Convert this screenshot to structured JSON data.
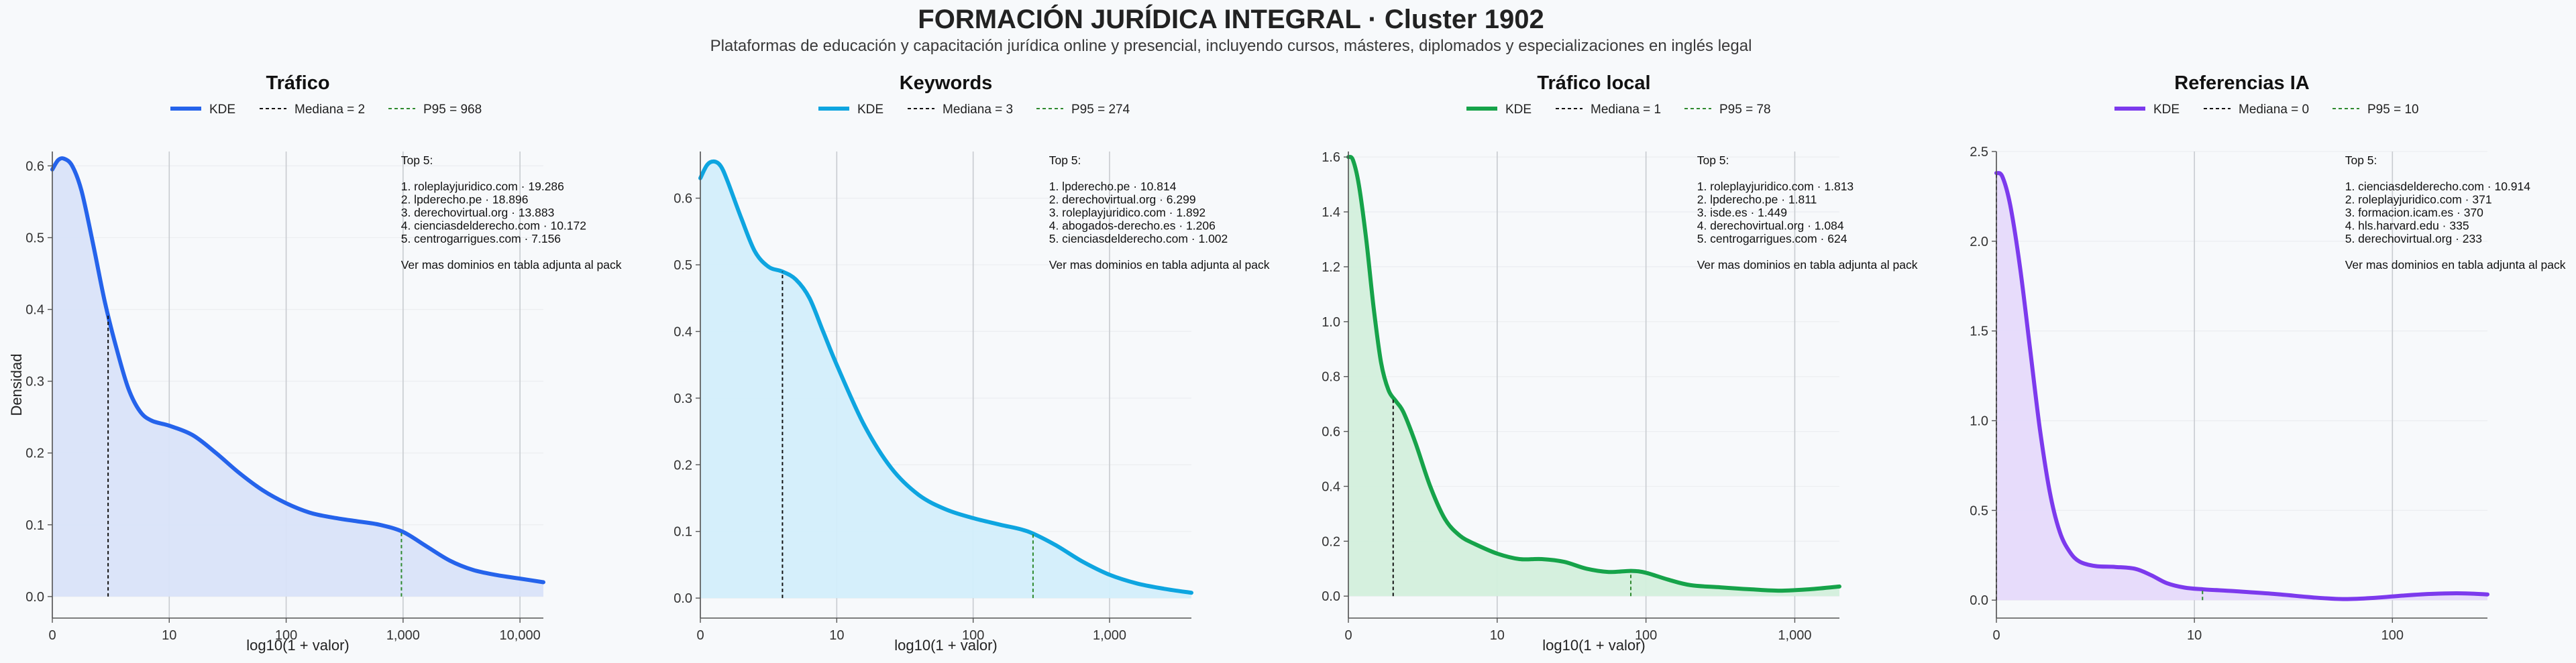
{
  "title": "FORMACIÓN JURÍDICA INTEGRAL · Cluster 1902",
  "subtitle": "Plataformas de educación y capacitación jurídica online y presencial, incluyendo cursos, másteres, diplomados y especializaciones en inglés legal",
  "chart_data": [
    {
      "type": "area",
      "title": "Tráfico",
      "color": "#2563eb",
      "fill": "#d9e3f9",
      "xlabel": "log10(1 + valor)",
      "ylabel": "Densidad",
      "xlim": [
        0,
        4.2
      ],
      "ylim": [
        -0.03,
        0.62
      ],
      "xticks": [
        {
          "v": 0,
          "label": "0"
        },
        {
          "v": 1,
          "label": "10"
        },
        {
          "v": 2,
          "label": "100"
        },
        {
          "v": 3,
          "label": "1,000"
        },
        {
          "v": 4,
          "label": "10,000"
        }
      ],
      "yticks": [
        {
          "v": 0,
          "label": "0.0"
        },
        {
          "v": 0.1,
          "label": "0.1"
        },
        {
          "v": 0.2,
          "label": "0.2"
        },
        {
          "v": 0.3,
          "label": "0.3"
        },
        {
          "v": 0.4,
          "label": "0.4"
        },
        {
          "v": 0.5,
          "label": "0.5"
        },
        {
          "v": 0.6,
          "label": "0.6"
        }
      ],
      "legend": {
        "kde": "KDE",
        "median": "Mediana = 2",
        "p95": "P95 = 968"
      },
      "median_x": 0.477,
      "p95_x": 2.986,
      "kde": [
        [
          0,
          0.595
        ],
        [
          0.05,
          0.608
        ],
        [
          0.1,
          0.61
        ],
        [
          0.17,
          0.6
        ],
        [
          0.25,
          0.565
        ],
        [
          0.35,
          0.49
        ],
        [
          0.45,
          0.41
        ],
        [
          0.55,
          0.345
        ],
        [
          0.65,
          0.29
        ],
        [
          0.75,
          0.258
        ],
        [
          0.85,
          0.245
        ],
        [
          1.0,
          0.238
        ],
        [
          1.2,
          0.225
        ],
        [
          1.4,
          0.2
        ],
        [
          1.6,
          0.172
        ],
        [
          1.8,
          0.148
        ],
        [
          2.0,
          0.13
        ],
        [
          2.2,
          0.117
        ],
        [
          2.4,
          0.11
        ],
        [
          2.6,
          0.105
        ],
        [
          2.8,
          0.1
        ],
        [
          3.0,
          0.09
        ],
        [
          3.2,
          0.07
        ],
        [
          3.4,
          0.05
        ],
        [
          3.6,
          0.037
        ],
        [
          3.8,
          0.03
        ],
        [
          4.0,
          0.025
        ],
        [
          4.2,
          0.02
        ]
      ],
      "annotation": {
        "heading": "Top 5:",
        "items": [
          "1. roleplayjuridico.com · 19.286",
          "2. lpderecho.pe · 18.896",
          "3. derechovirtual.org · 13.883",
          "4. cienciasdelderecho.com · 10.172",
          "5. centrogarrigues.com · 7.156"
        ],
        "footer": "Ver mas dominios en tabla adjunta al pack"
      }
    },
    {
      "type": "area",
      "title": "Keywords",
      "color": "#0ea5e0",
      "fill": "#d3eefb",
      "xlabel": "log10(1 + valor)",
      "ylabel": "",
      "xlim": [
        0,
        3.6
      ],
      "ylim": [
        -0.03,
        0.67
      ],
      "xticks": [
        {
          "v": 0,
          "label": "0"
        },
        {
          "v": 1,
          "label": "10"
        },
        {
          "v": 2,
          "label": "100"
        },
        {
          "v": 3,
          "label": "1,000"
        }
      ],
      "yticks": [
        {
          "v": 0,
          "label": "0.0"
        },
        {
          "v": 0.1,
          "label": "0.1"
        },
        {
          "v": 0.2,
          "label": "0.2"
        },
        {
          "v": 0.3,
          "label": "0.3"
        },
        {
          "v": 0.4,
          "label": "0.4"
        },
        {
          "v": 0.5,
          "label": "0.5"
        },
        {
          "v": 0.6,
          "label": "0.6"
        }
      ],
      "legend": {
        "kde": "KDE",
        "median": "Mediana = 3",
        "p95": "P95 = 274"
      },
      "median_x": 0.602,
      "p95_x": 2.439,
      "kde": [
        [
          0,
          0.63
        ],
        [
          0.05,
          0.65
        ],
        [
          0.1,
          0.655
        ],
        [
          0.15,
          0.648
        ],
        [
          0.2,
          0.625
        ],
        [
          0.3,
          0.57
        ],
        [
          0.4,
          0.52
        ],
        [
          0.5,
          0.497
        ],
        [
          0.6,
          0.49
        ],
        [
          0.7,
          0.478
        ],
        [
          0.8,
          0.45
        ],
        [
          0.9,
          0.4
        ],
        [
          1.0,
          0.35
        ],
        [
          1.2,
          0.26
        ],
        [
          1.4,
          0.195
        ],
        [
          1.6,
          0.155
        ],
        [
          1.8,
          0.133
        ],
        [
          2.0,
          0.12
        ],
        [
          2.2,
          0.11
        ],
        [
          2.4,
          0.1
        ],
        [
          2.6,
          0.08
        ],
        [
          2.8,
          0.055
        ],
        [
          3.0,
          0.035
        ],
        [
          3.2,
          0.022
        ],
        [
          3.4,
          0.014
        ],
        [
          3.6,
          0.008
        ]
      ],
      "annotation": {
        "heading": "Top 5:",
        "items": [
          "1. lpderecho.pe · 10.814",
          "2. derechovirtual.org · 6.299",
          "3. roleplayjuridico.com · 1.892",
          "4. abogados-derecho.es · 1.206",
          "5. cienciasdelderecho.com · 1.002"
        ],
        "footer": "Ver mas dominios en tabla adjunta al pack"
      }
    },
    {
      "type": "area",
      "title": "Tráfico local",
      "color": "#16a34a",
      "fill": "#d3efdc",
      "xlabel": "log10(1 + valor)",
      "ylabel": "",
      "xlim": [
        0,
        3.3
      ],
      "ylim": [
        -0.08,
        1.62
      ],
      "xticks": [
        {
          "v": 0,
          "label": "0"
        },
        {
          "v": 1,
          "label": "10"
        },
        {
          "v": 2,
          "label": "100"
        },
        {
          "v": 3,
          "label": "1,000"
        }
      ],
      "yticks": [
        {
          "v": 0,
          "label": "0.0"
        },
        {
          "v": 0.2,
          "label": "0.2"
        },
        {
          "v": 0.4,
          "label": "0.4"
        },
        {
          "v": 0.6,
          "label": "0.6"
        },
        {
          "v": 0.8,
          "label": "0.8"
        },
        {
          "v": 1.0,
          "label": "1.0"
        },
        {
          "v": 1.2,
          "label": "1.2"
        },
        {
          "v": 1.4,
          "label": "1.4"
        },
        {
          "v": 1.6,
          "label": "1.6"
        }
      ],
      "legend": {
        "kde": "KDE",
        "median": "Mediana = 1",
        "p95": "P95 = 78"
      },
      "median_x": 0.301,
      "p95_x": 1.898,
      "kde": [
        [
          0,
          1.6
        ],
        [
          0.03,
          1.59
        ],
        [
          0.07,
          1.5
        ],
        [
          0.12,
          1.3
        ],
        [
          0.17,
          1.05
        ],
        [
          0.22,
          0.85
        ],
        [
          0.27,
          0.75
        ],
        [
          0.32,
          0.71
        ],
        [
          0.37,
          0.67
        ],
        [
          0.45,
          0.56
        ],
        [
          0.55,
          0.4
        ],
        [
          0.65,
          0.28
        ],
        [
          0.75,
          0.22
        ],
        [
          0.85,
          0.19
        ],
        [
          1.0,
          0.155
        ],
        [
          1.15,
          0.135
        ],
        [
          1.3,
          0.135
        ],
        [
          1.45,
          0.125
        ],
        [
          1.6,
          0.1
        ],
        [
          1.75,
          0.088
        ],
        [
          1.9,
          0.092
        ],
        [
          2.0,
          0.085
        ],
        [
          2.15,
          0.06
        ],
        [
          2.3,
          0.04
        ],
        [
          2.5,
          0.032
        ],
        [
          2.7,
          0.025
        ],
        [
          2.9,
          0.02
        ],
        [
          3.1,
          0.025
        ],
        [
          3.3,
          0.035
        ]
      ],
      "annotation": {
        "heading": "Top 5:",
        "items": [
          "1. roleplayjuridico.com · 1.813",
          "2. lpderecho.pe · 1.811",
          "3. isde.es · 1.449",
          "4. derechovirtual.org · 1.084",
          "5. centrogarrigues.com · 624"
        ],
        "footer": "Ver mas dominios en tabla adjunta al pack"
      }
    },
    {
      "type": "area",
      "title": "Referencias IA",
      "color": "#7c3aed",
      "fill": "#e6dafb",
      "xlabel": "",
      "ylabel": "",
      "xlim": [
        0,
        2.48
      ],
      "ylim": [
        -0.1,
        2.5
      ],
      "xticks": [
        {
          "v": 0,
          "label": "0"
        },
        {
          "v": 1,
          "label": "10"
        },
        {
          "v": 2,
          "label": "100"
        }
      ],
      "yticks": [
        {
          "v": 0,
          "label": "0.0"
        },
        {
          "v": 0.5,
          "label": "0.5"
        },
        {
          "v": 1.0,
          "label": "1.0"
        },
        {
          "v": 1.5,
          "label": "1.5"
        },
        {
          "v": 2.0,
          "label": "2.0"
        },
        {
          "v": 2.5,
          "label": "2.5"
        }
      ],
      "legend": {
        "kde": "KDE",
        "median": "Mediana = 0",
        "p95": "P95 = 10"
      },
      "median_x": 0,
      "p95_x": 1.041,
      "kde": [
        [
          0,
          2.38
        ],
        [
          0.03,
          2.36
        ],
        [
          0.07,
          2.2
        ],
        [
          0.12,
          1.85
        ],
        [
          0.17,
          1.4
        ],
        [
          0.22,
          0.95
        ],
        [
          0.27,
          0.6
        ],
        [
          0.32,
          0.38
        ],
        [
          0.37,
          0.27
        ],
        [
          0.42,
          0.215
        ],
        [
          0.5,
          0.19
        ],
        [
          0.6,
          0.185
        ],
        [
          0.7,
          0.175
        ],
        [
          0.78,
          0.14
        ],
        [
          0.86,
          0.095
        ],
        [
          0.95,
          0.07
        ],
        [
          1.05,
          0.06
        ],
        [
          1.2,
          0.05
        ],
        [
          1.4,
          0.035
        ],
        [
          1.6,
          0.015
        ],
        [
          1.75,
          0.006
        ],
        [
          1.9,
          0.012
        ],
        [
          2.05,
          0.025
        ],
        [
          2.2,
          0.035
        ],
        [
          2.35,
          0.038
        ],
        [
          2.48,
          0.032
        ]
      ],
      "annotation": {
        "heading": "Top 5:",
        "items": [
          "1. cienciasdelderecho.com · 10.914",
          "2. roleplayjuridico.com · 371",
          "3. formacion.icam.es · 370",
          "4. hls.harvard.edu · 335",
          "5. derechovirtual.org · 233"
        ],
        "footer": "Ver mas dominios en tabla adjunta al pack"
      }
    }
  ]
}
